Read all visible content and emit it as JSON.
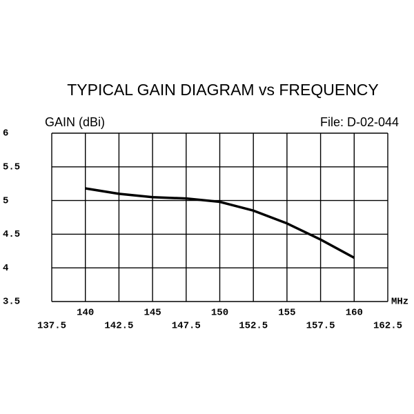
{
  "chart_data": {
    "type": "line",
    "title": "TYPICAL GAIN DIAGRAM vs FREQUENCY",
    "y_label": "GAIN (dBi)",
    "x_label": "MHz",
    "annotation": "File:  D-02-044",
    "x": [
      140,
      142.5,
      145,
      147.5,
      150,
      152.5,
      155,
      157.5,
      160
    ],
    "series": [
      {
        "name": "Gain",
        "color": "#000000",
        "values": [
          5.18,
          5.1,
          5.05,
          5.03,
          4.98,
          4.85,
          4.66,
          4.42,
          4.15
        ]
      }
    ],
    "xlim": [
      137.5,
      162.5
    ],
    "xticks": [
      137.5,
      140,
      142.5,
      145,
      147.5,
      150,
      152.5,
      155,
      157.5,
      160,
      162.5
    ],
    "ylim": [
      3.5,
      6
    ],
    "yticks": [
      3.5,
      4,
      4.5,
      5,
      5.5,
      6
    ],
    "grid": true
  }
}
